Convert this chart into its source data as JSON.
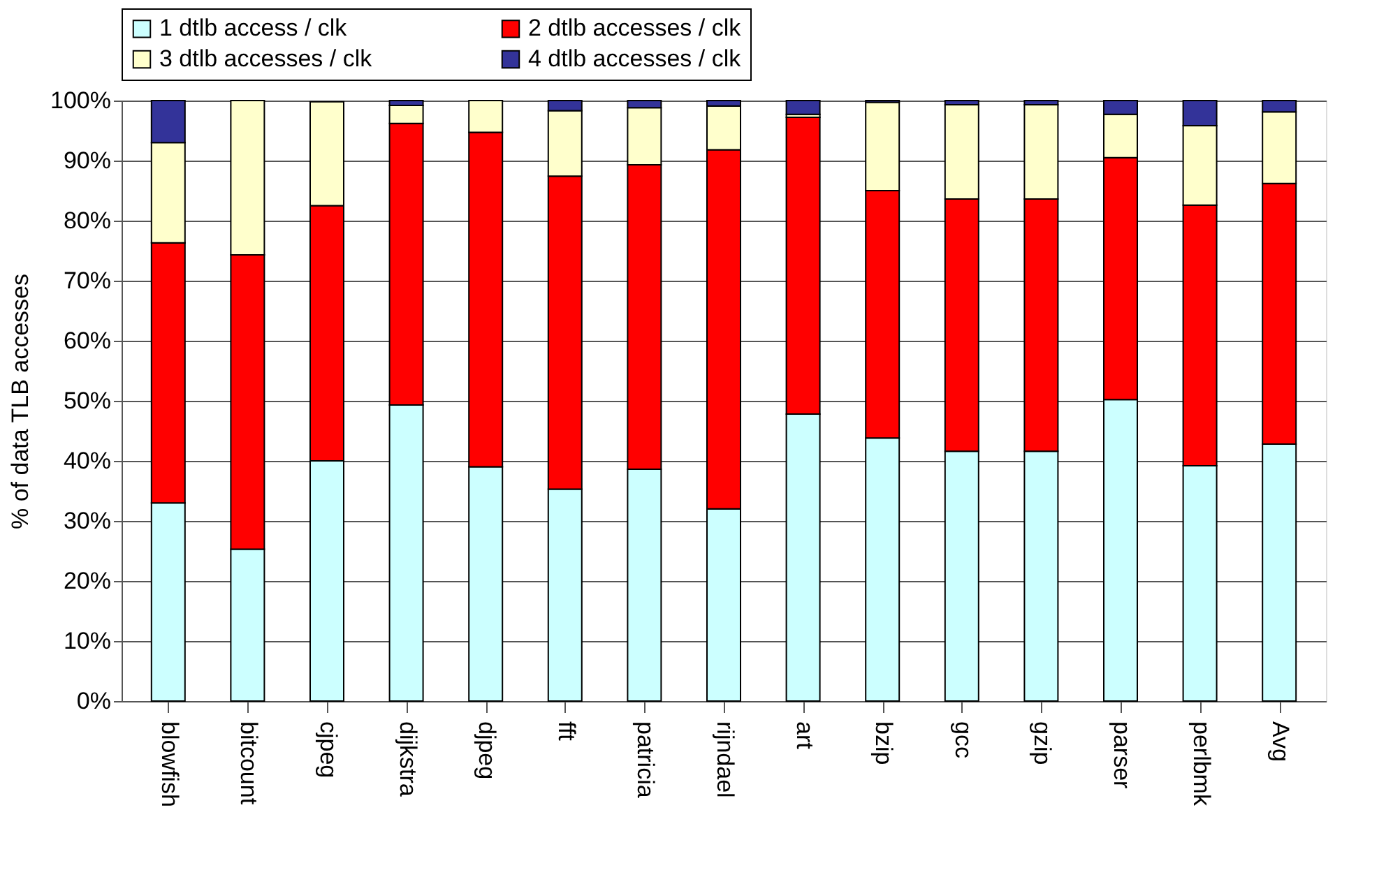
{
  "chart_data": {
    "type": "bar",
    "stacked": true,
    "ylabel": "% of data TLB accesses",
    "categories": [
      "blowfish",
      "bitcount",
      "cjpeg",
      "dijkstra",
      "djpeg",
      "fft",
      "patricia",
      "rijndael",
      "art",
      "bzip",
      "gcc",
      "gzip",
      "parser",
      "perlbmk",
      "Avg"
    ],
    "series": [
      {
        "name": "1 dtlb access / clk",
        "color": "#ccffff",
        "values": [
          33,
          25.3,
          40,
          49.3,
          39,
          35.3,
          38.6,
          32,
          47.8,
          43.8,
          41.6,
          41.6,
          50.2,
          39.2,
          42.8
        ]
      },
      {
        "name": "2 dtlb accesses / clk",
        "color": "#ff0000",
        "values": [
          43.3,
          49,
          42.5,
          46.9,
          55.7,
          52.1,
          50.7,
          59.8,
          49.4,
          41.2,
          42,
          42,
          40.3,
          43.4,
          43.4
        ]
      },
      {
        "name": "3 dtlb accesses / clk",
        "color": "#ffffcc",
        "values": [
          16.7,
          25.7,
          17.3,
          3,
          5.3,
          10.9,
          9.5,
          7.3,
          0.5,
          14.7,
          15.7,
          15.7,
          7.2,
          13.2,
          11.9
        ]
      },
      {
        "name": "4 dtlb accesses / clk",
        "color": "#333399",
        "values": [
          7,
          0,
          null,
          0.8,
          0,
          1.7,
          1.2,
          0.9,
          2.3,
          0.3,
          0.7,
          0.7,
          2.3,
          4.2,
          1.9
        ]
      }
    ],
    "ylim": [
      0,
      100
    ],
    "yticks": [
      {
        "value": 0,
        "label": "0%"
      },
      {
        "value": 10,
        "label": "10%"
      },
      {
        "value": 20,
        "label": "20%"
      },
      {
        "value": 30,
        "label": "30%"
      },
      {
        "value": 40,
        "label": "40%"
      },
      {
        "value": 50,
        "label": "50%"
      },
      {
        "value": 60,
        "label": "60%"
      },
      {
        "value": 70,
        "label": "70%"
      },
      {
        "value": 80,
        "label": "80%"
      },
      {
        "value": 90,
        "label": "90%"
      },
      {
        "value": 100,
        "label": "100%"
      }
    ],
    "grid": "y",
    "legend": "top"
  }
}
